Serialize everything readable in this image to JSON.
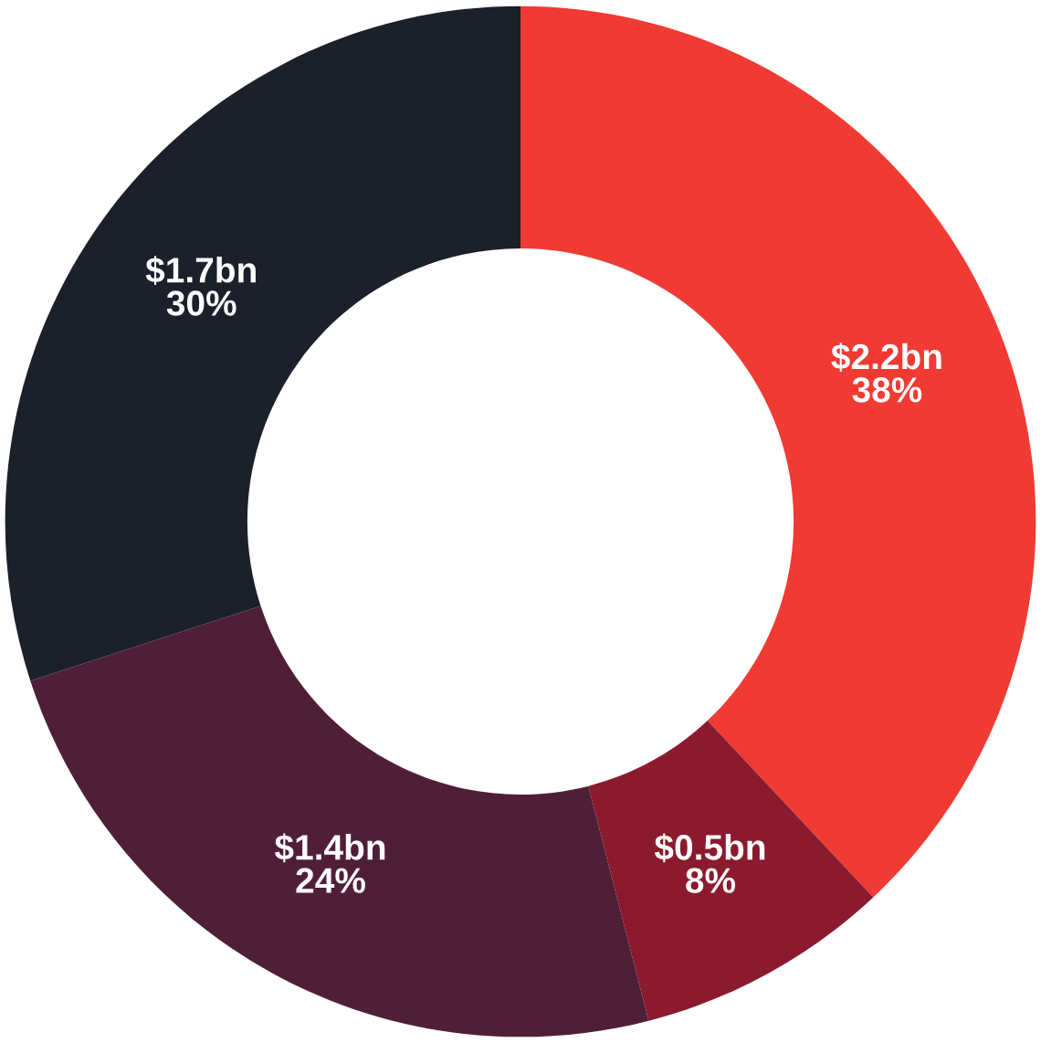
{
  "chart_data": {
    "type": "donut",
    "categories": [
      null,
      null,
      null,
      null
    ],
    "values": [
      38,
      8,
      24,
      30
    ],
    "colors": [
      "#ef3b33",
      "#8b1a2e",
      "#4f1f38",
      "#1c202b"
    ],
    "value_labels": [
      "$2.2bn\n38%",
      "$0.5bn\n8%",
      "$1.4bn\n24%",
      "$1.7bn\n30%"
    ],
    "legend": false
  }
}
